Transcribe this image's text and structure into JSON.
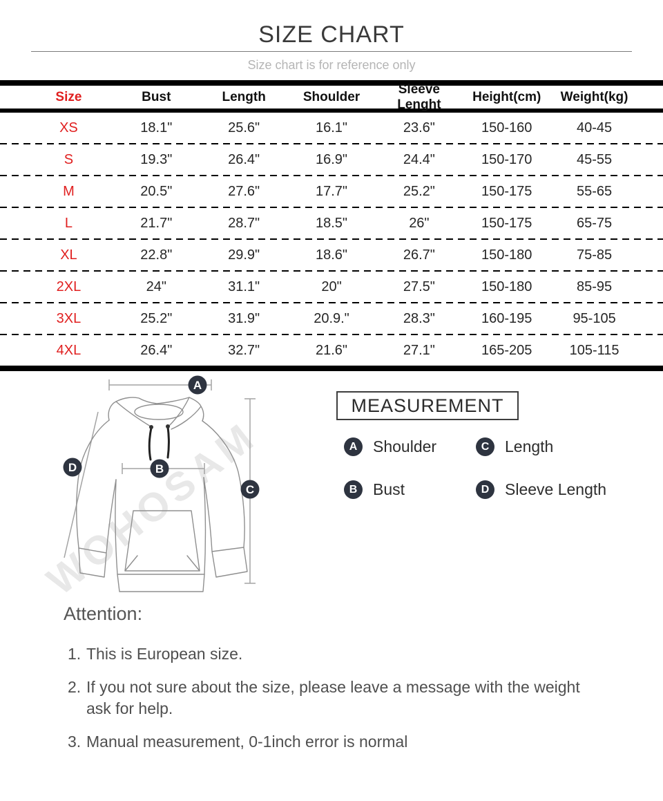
{
  "page": {
    "title": "SIZE CHART",
    "subtitle": "Size chart is for reference only"
  },
  "size_table": {
    "headers": [
      "Size",
      "Bust",
      "Length",
      "Shoulder",
      "Sleeve Lenght",
      "Height(cm)",
      "Weight(kg)"
    ],
    "rows": [
      [
        "XS",
        "18.1\"",
        "25.6\"",
        "16.1\"",
        "23.6\"",
        "150-160",
        "40-45"
      ],
      [
        "S",
        "19.3\"",
        "26.4\"",
        "16.9\"",
        "24.4\"",
        "150-170",
        "45-55"
      ],
      [
        "M",
        "20.5\"",
        "27.6\"",
        "17.7\"",
        "25.2\"",
        "150-175",
        "55-65"
      ],
      [
        "L",
        "21.7\"",
        "28.7\"",
        "18.5\"",
        "26\"",
        "150-175",
        "65-75"
      ],
      [
        "XL",
        "22.8\"",
        "29.9\"",
        "18.6\"",
        "26.7\"",
        "150-180",
        "75-85"
      ],
      [
        "2XL",
        "24\"",
        "31.1\"",
        "20\"",
        "27.5\"",
        "150-180",
        "85-95"
      ],
      [
        "3XL",
        "25.2\"",
        "31.9\"",
        "20.9.\"",
        "28.3\"",
        "160-195",
        "95-105"
      ],
      [
        "4XL",
        "26.4\"",
        "32.7\"",
        "21.6\"",
        "27.1\"",
        "165-205",
        "105-115"
      ]
    ]
  },
  "measurement": {
    "title": "MEASUREMENT",
    "legend": [
      {
        "key": "A",
        "label": "Shoulder"
      },
      {
        "key": "C",
        "label": "Length"
      },
      {
        "key": "B",
        "label": "Bust"
      },
      {
        "key": "D",
        "label": "Sleeve Length"
      }
    ]
  },
  "diagram": {
    "watermark": "WOHOSAM",
    "markers": [
      "A",
      "B",
      "C",
      "D"
    ]
  },
  "attention": {
    "heading": "Attention:",
    "items": [
      {
        "num": "1.",
        "text": "This is European size."
      },
      {
        "num": "2.",
        "text": "If you not sure about the size, please leave a message with the weight ask for help."
      },
      {
        "num": "3.",
        "text": "Manual measurement, 0-1inch error is normal"
      }
    ]
  },
  "colors": {
    "accent_red": "#e01f1f",
    "badge_dark": "#2e3440",
    "bar_black": "#000000",
    "subtitle_gray": "#b5b5b5",
    "note_gray": "#555555",
    "watermark_gray": "#e8e8e8"
  }
}
